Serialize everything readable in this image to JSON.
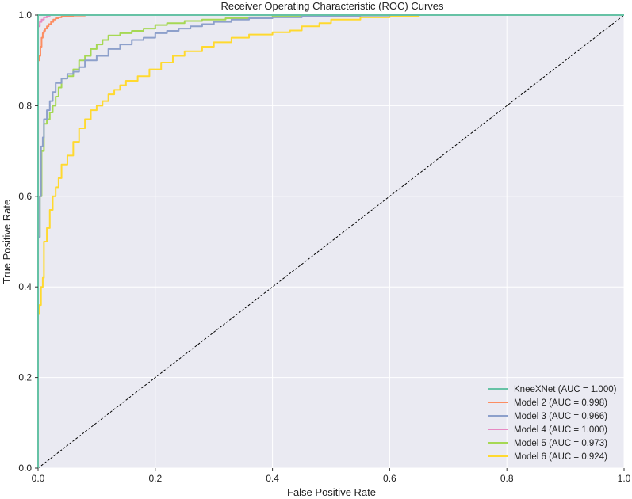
{
  "chart_data": {
    "type": "line",
    "title": "Receiver Operating Characteristic (ROC) Curves",
    "xlabel": "False Positive Rate",
    "ylabel": "True Positive Rate",
    "xlim": [
      0,
      1
    ],
    "ylim": [
      0,
      1
    ],
    "xticks": [
      "0.0",
      "0.2",
      "0.4",
      "0.6",
      "0.8",
      "1.0"
    ],
    "yticks": [
      "0.0",
      "0.2",
      "0.4",
      "0.6",
      "0.8",
      "1.0"
    ],
    "grid": true,
    "legend": "lower-right",
    "background": "#eaeaf2",
    "series": [
      {
        "name": "KneeXNet (AUC = 1.000)",
        "color": "#66c2a5",
        "x": [
          0,
          0,
          1
        ],
        "y": [
          0,
          1,
          1
        ]
      },
      {
        "name": "Model 2 (AUC = 0.998)",
        "color": "#fc8d62",
        "x": [
          0,
          0,
          0.002,
          0.004,
          0.006,
          0.008,
          0.01,
          0.012,
          0.015,
          0.018,
          0.022,
          0.026,
          0.03,
          0.035,
          0.04,
          0.05,
          0.06,
          0.08,
          0.1,
          0.15,
          1
        ],
        "y": [
          0,
          0.89,
          0.9,
          0.91,
          0.93,
          0.95,
          0.96,
          0.965,
          0.97,
          0.975,
          0.98,
          0.985,
          0.99,
          0.993,
          0.995,
          0.997,
          0.998,
          0.999,
          1.0,
          1.0,
          1.0
        ]
      },
      {
        "name": "Model 3 (AUC = 0.966)",
        "color": "#8da0cb",
        "x": [
          0,
          0,
          0.003,
          0.005,
          0.008,
          0.01,
          0.015,
          0.02,
          0.025,
          0.03,
          0.04,
          0.05,
          0.06,
          0.07,
          0.08,
          0.1,
          0.12,
          0.14,
          0.16,
          0.18,
          0.2,
          0.22,
          0.24,
          0.26,
          0.28,
          0.3,
          0.33,
          0.36,
          0.4,
          0.45,
          0.5,
          0.55,
          0.6,
          0.65,
          0.7,
          1
        ],
        "y": [
          0,
          0.43,
          0.51,
          0.6,
          0.71,
          0.73,
          0.77,
          0.79,
          0.81,
          0.83,
          0.85,
          0.86,
          0.87,
          0.875,
          0.885,
          0.9,
          0.91,
          0.925,
          0.935,
          0.945,
          0.95,
          0.96,
          0.965,
          0.97,
          0.975,
          0.98,
          0.985,
          0.99,
          0.993,
          0.995,
          0.997,
          0.998,
          0.999,
          1.0,
          1.0,
          1.0
        ]
      },
      {
        "name": "Model 4 (AUC = 1.000)",
        "color": "#e78ac3",
        "x": [
          0,
          0,
          0.003,
          0.006,
          0.01,
          0.015,
          0.02,
          0.03,
          1
        ],
        "y": [
          0,
          0.86,
          0.975,
          0.985,
          0.99,
          0.995,
          0.998,
          1.0,
          1.0
        ]
      },
      {
        "name": "Model 5 (AUC = 0.973)",
        "color": "#a6d854",
        "x": [
          0,
          0,
          0.003,
          0.006,
          0.01,
          0.015,
          0.02,
          0.025,
          0.03,
          0.035,
          0.04,
          0.05,
          0.06,
          0.07,
          0.08,
          0.09,
          0.1,
          0.11,
          0.12,
          0.14,
          0.16,
          0.18,
          0.2,
          0.22,
          0.25,
          0.28,
          0.32,
          0.36,
          0.4,
          0.45,
          0.5,
          0.55,
          0.6,
          0.65,
          0.7,
          1
        ],
        "y": [
          0,
          0.45,
          0.51,
          0.6,
          0.7,
          0.76,
          0.77,
          0.785,
          0.8,
          0.82,
          0.84,
          0.86,
          0.865,
          0.88,
          0.9,
          0.91,
          0.925,
          0.935,
          0.945,
          0.955,
          0.96,
          0.965,
          0.97,
          0.978,
          0.982,
          0.987,
          0.99,
          0.993,
          0.995,
          0.997,
          0.998,
          0.999,
          1.0,
          1.0,
          1.0,
          1.0
        ]
      },
      {
        "name": "Model 6 (AUC = 0.924)",
        "color": "#ffd92f",
        "x": [
          0,
          0,
          0.002,
          0.005,
          0.008,
          0.01,
          0.015,
          0.02,
          0.025,
          0.03,
          0.035,
          0.04,
          0.05,
          0.06,
          0.07,
          0.08,
          0.09,
          0.1,
          0.11,
          0.12,
          0.13,
          0.14,
          0.15,
          0.17,
          0.19,
          0.21,
          0.23,
          0.25,
          0.28,
          0.3,
          0.33,
          0.36,
          0.4,
          0.43,
          0.45,
          0.48,
          0.5,
          0.55,
          0.6,
          0.65,
          0.7,
          1
        ],
        "y": [
          0,
          0.27,
          0.34,
          0.36,
          0.4,
          0.42,
          0.5,
          0.53,
          0.57,
          0.6,
          0.62,
          0.64,
          0.67,
          0.69,
          0.72,
          0.75,
          0.77,
          0.79,
          0.8,
          0.81,
          0.825,
          0.835,
          0.845,
          0.855,
          0.865,
          0.88,
          0.895,
          0.91,
          0.92,
          0.93,
          0.94,
          0.95,
          0.957,
          0.962,
          0.966,
          0.975,
          0.982,
          0.99,
          0.995,
          0.998,
          1.0,
          1.0
        ]
      }
    ],
    "diagonal": {
      "x": [
        0,
        1
      ],
      "y": [
        0,
        1
      ],
      "color": "#000000"
    }
  }
}
